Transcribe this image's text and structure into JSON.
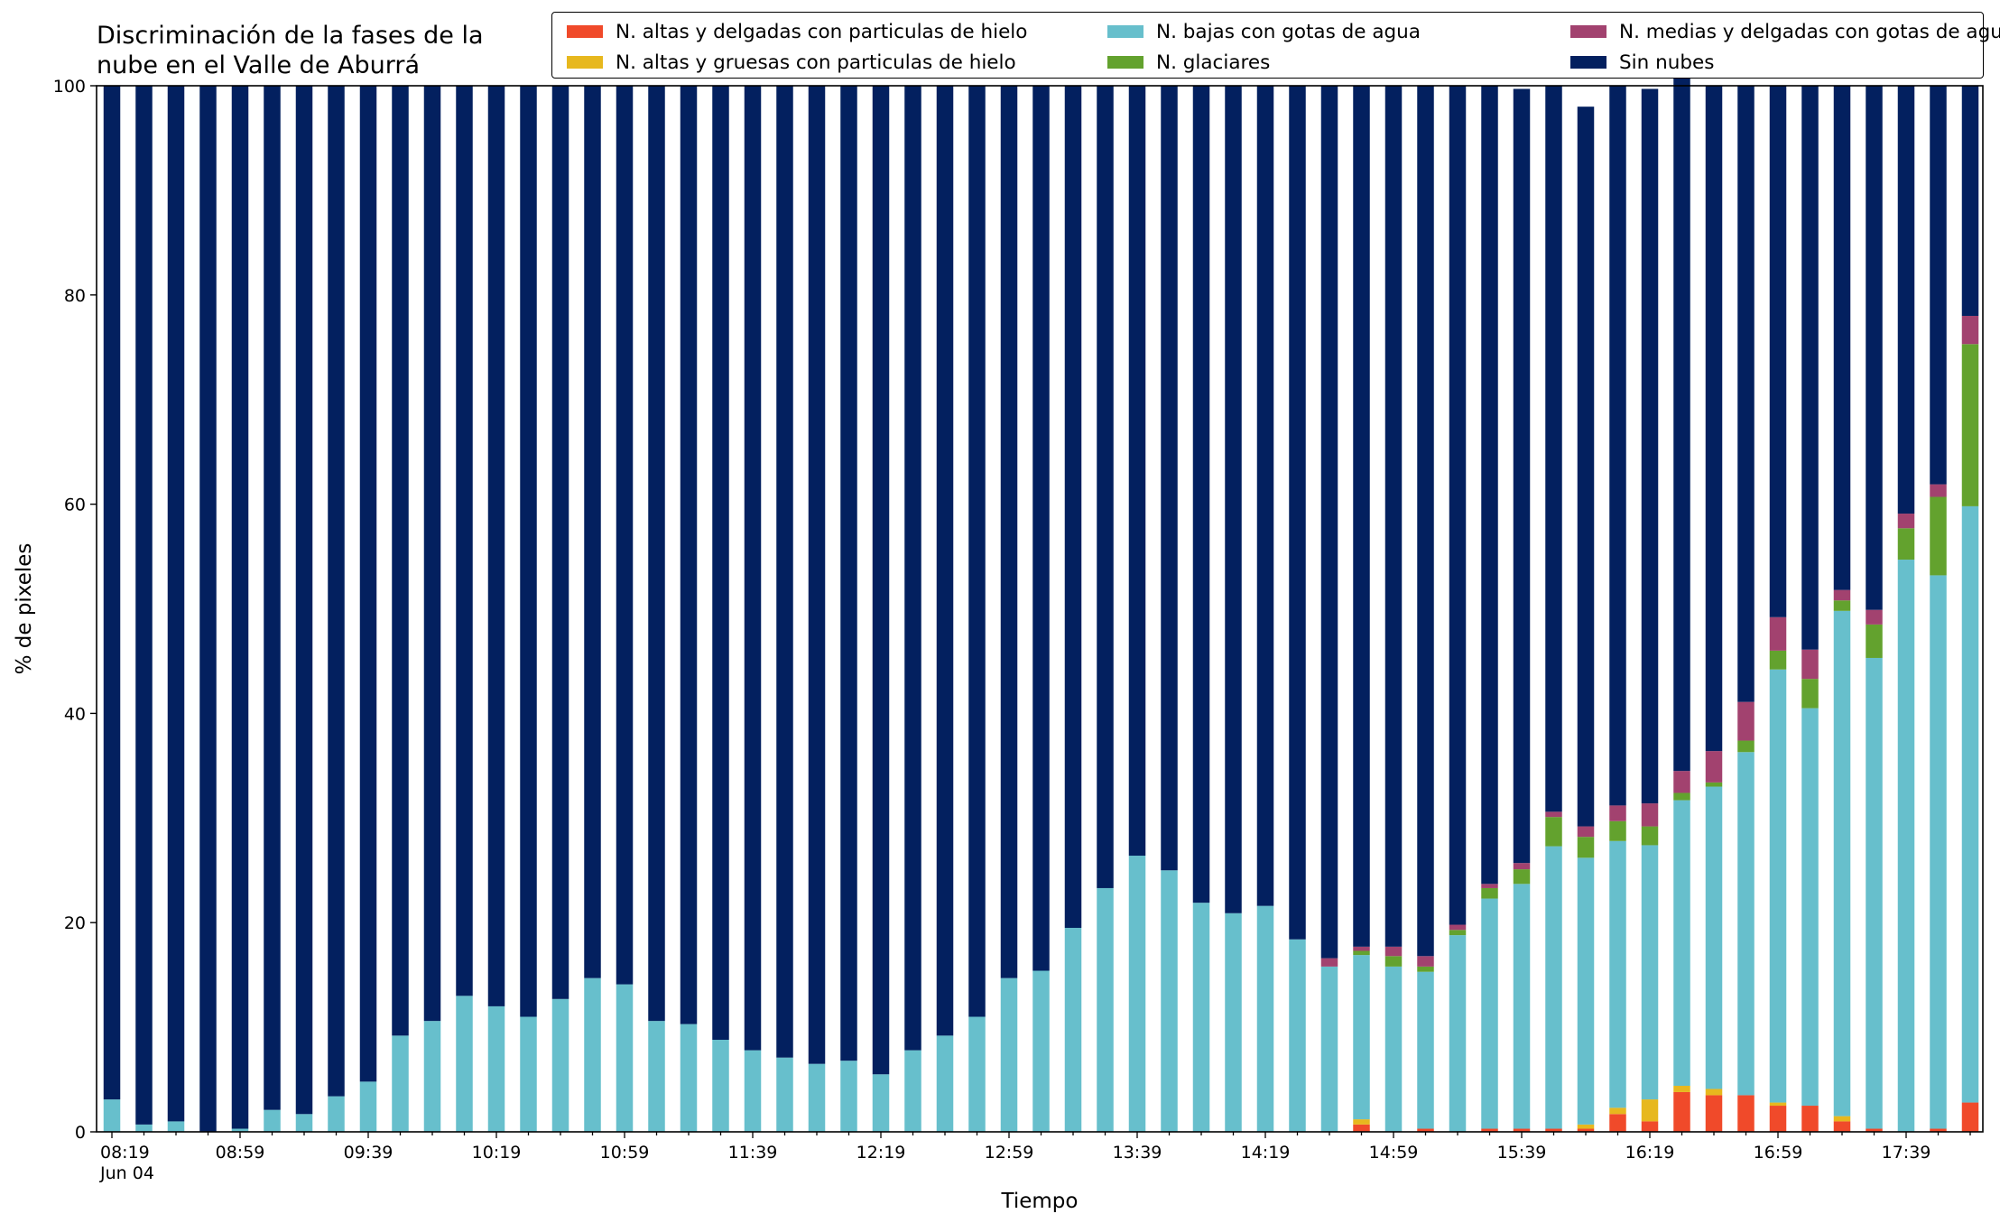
{
  "title": "Discriminación de la fases de la\nnube en el Valle de Aburrá",
  "chart_data": {
    "type": "bar",
    "stacked": true,
    "xlabel": "Tiempo",
    "ylabel": "% de pixeles",
    "ylim": [
      0,
      100
    ],
    "yticks": [
      0,
      20,
      40,
      60,
      80,
      100
    ],
    "grid": false,
    "legend_position": "top-right",
    "x_tick_labels": [
      "08:19\nJun 04",
      "08:59",
      "09:39",
      "10:19",
      "10:59",
      "11:39",
      "12:19",
      "12:59",
      "13:39",
      "14:19",
      "14:59",
      "15:39",
      "16:19",
      "16:59",
      "17:39"
    ],
    "series": [
      {
        "name": "N. altas y delgadas con particulas de hielo",
        "color": "#f04a2a",
        "values": [
          0,
          0,
          0,
          0,
          0,
          0,
          0,
          0,
          0,
          0,
          0,
          0,
          0,
          0,
          0,
          0,
          0,
          0,
          0,
          0,
          0,
          0,
          0,
          0,
          0,
          0,
          0,
          0,
          0,
          0,
          0,
          0,
          0,
          0,
          0,
          0,
          0,
          0,
          0,
          0.7,
          0,
          0.3,
          0,
          0.3,
          0.3,
          0.3,
          0.3,
          1.7,
          1.0,
          3.8,
          3.5,
          3.5,
          2.5,
          2.5,
          1.0,
          0.3,
          0,
          0.3,
          2.8
        ]
      },
      {
        "name": "N. altas y gruesas con particulas de hielo",
        "color": "#e7b81e",
        "values": [
          0,
          0,
          0,
          0,
          0,
          0,
          0,
          0,
          0,
          0,
          0,
          0,
          0,
          0,
          0,
          0,
          0,
          0,
          0,
          0,
          0,
          0,
          0,
          0,
          0,
          0,
          0,
          0,
          0,
          0,
          0,
          0,
          0,
          0,
          0,
          0,
          0,
          0,
          0,
          0.5,
          0,
          0,
          0,
          0,
          0,
          0,
          0.4,
          0.6,
          2.1,
          0.6,
          0.6,
          0,
          0.3,
          0,
          0.5,
          0,
          0,
          0,
          0
        ]
      },
      {
        "name": "N. bajas con gotas de agua",
        "color": "#67bfcc",
        "values": [
          3.1,
          0.7,
          1.0,
          0,
          0.3,
          2.1,
          1.7,
          3.4,
          4.8,
          9.2,
          10.6,
          13.0,
          12.0,
          11.0,
          12.7,
          14.7,
          14.1,
          10.6,
          10.3,
          8.8,
          7.8,
          7.1,
          6.5,
          6.8,
          5.5,
          7.8,
          9.2,
          11.0,
          14.7,
          15.4,
          19.5,
          23.3,
          26.4,
          25.0,
          21.9,
          20.9,
          21.6,
          18.4,
          15.8,
          15.7,
          15.8,
          15.0,
          18.8,
          22.0,
          23.4,
          27.0,
          25.5,
          25.5,
          24.3,
          27.3,
          28.9,
          32.8,
          41.4,
          38.0,
          48.3,
          45.0,
          54.7,
          52.9,
          57.0
        ]
      },
      {
        "name": "N. glaciares",
        "color": "#63a22e",
        "values": [
          0,
          0,
          0,
          0,
          0,
          0,
          0,
          0,
          0,
          0,
          0,
          0,
          0,
          0,
          0,
          0,
          0,
          0,
          0,
          0,
          0,
          0,
          0,
          0,
          0,
          0,
          0,
          0,
          0,
          0,
          0,
          0,
          0,
          0,
          0,
          0,
          0,
          0,
          0,
          0.4,
          1.0,
          0.5,
          0.5,
          1.0,
          1.4,
          2.8,
          2.0,
          1.9,
          1.8,
          0.7,
          0.4,
          1.1,
          1.8,
          2.8,
          1.0,
          3.2,
          3.0,
          7.5,
          15.5
        ]
      },
      {
        "name": "N. medias y delgadas con gotas de agua",
        "color": "#a2426f",
        "values": [
          0,
          0,
          0,
          0,
          0,
          0,
          0,
          0,
          0,
          0,
          0,
          0,
          0,
          0,
          0,
          0,
          0,
          0,
          0,
          0,
          0,
          0,
          0,
          0,
          0,
          0,
          0,
          0,
          0,
          0,
          0,
          0,
          0,
          0,
          0,
          0,
          0,
          0,
          0.8,
          0.4,
          0.9,
          1.0,
          0.5,
          0.4,
          0.6,
          0.5,
          1.0,
          1.5,
          2.2,
          2.1,
          3.0,
          3.7,
          3.2,
          2.8,
          1.0,
          1.4,
          1.4,
          1.2,
          2.7
        ]
      },
      {
        "name": "Sin nubes",
        "color": "#03205f",
        "values": [
          96.9,
          99.3,
          99.0,
          100,
          99.7,
          97.9,
          98.3,
          96.6,
          95.2,
          90.8,
          89.4,
          87.0,
          88.0,
          89.0,
          87.3,
          85.3,
          85.9,
          89.4,
          89.7,
          91.2,
          92.2,
          92.9,
          93.5,
          93.2,
          94.5,
          92.2,
          90.8,
          89.0,
          85.3,
          84.6,
          80.5,
          76.7,
          73.6,
          75.0,
          78.1,
          79.1,
          78.4,
          81.6,
          83.4,
          82.3,
          82.3,
          83.2,
          80.2,
          76.3,
          74.0,
          69.4,
          68.8,
          68.8,
          68.3,
          69.5,
          63.6,
          58.9,
          50.8,
          53.9,
          48.2,
          50.1,
          40.9,
          38.1,
          22.0
        ]
      }
    ]
  }
}
